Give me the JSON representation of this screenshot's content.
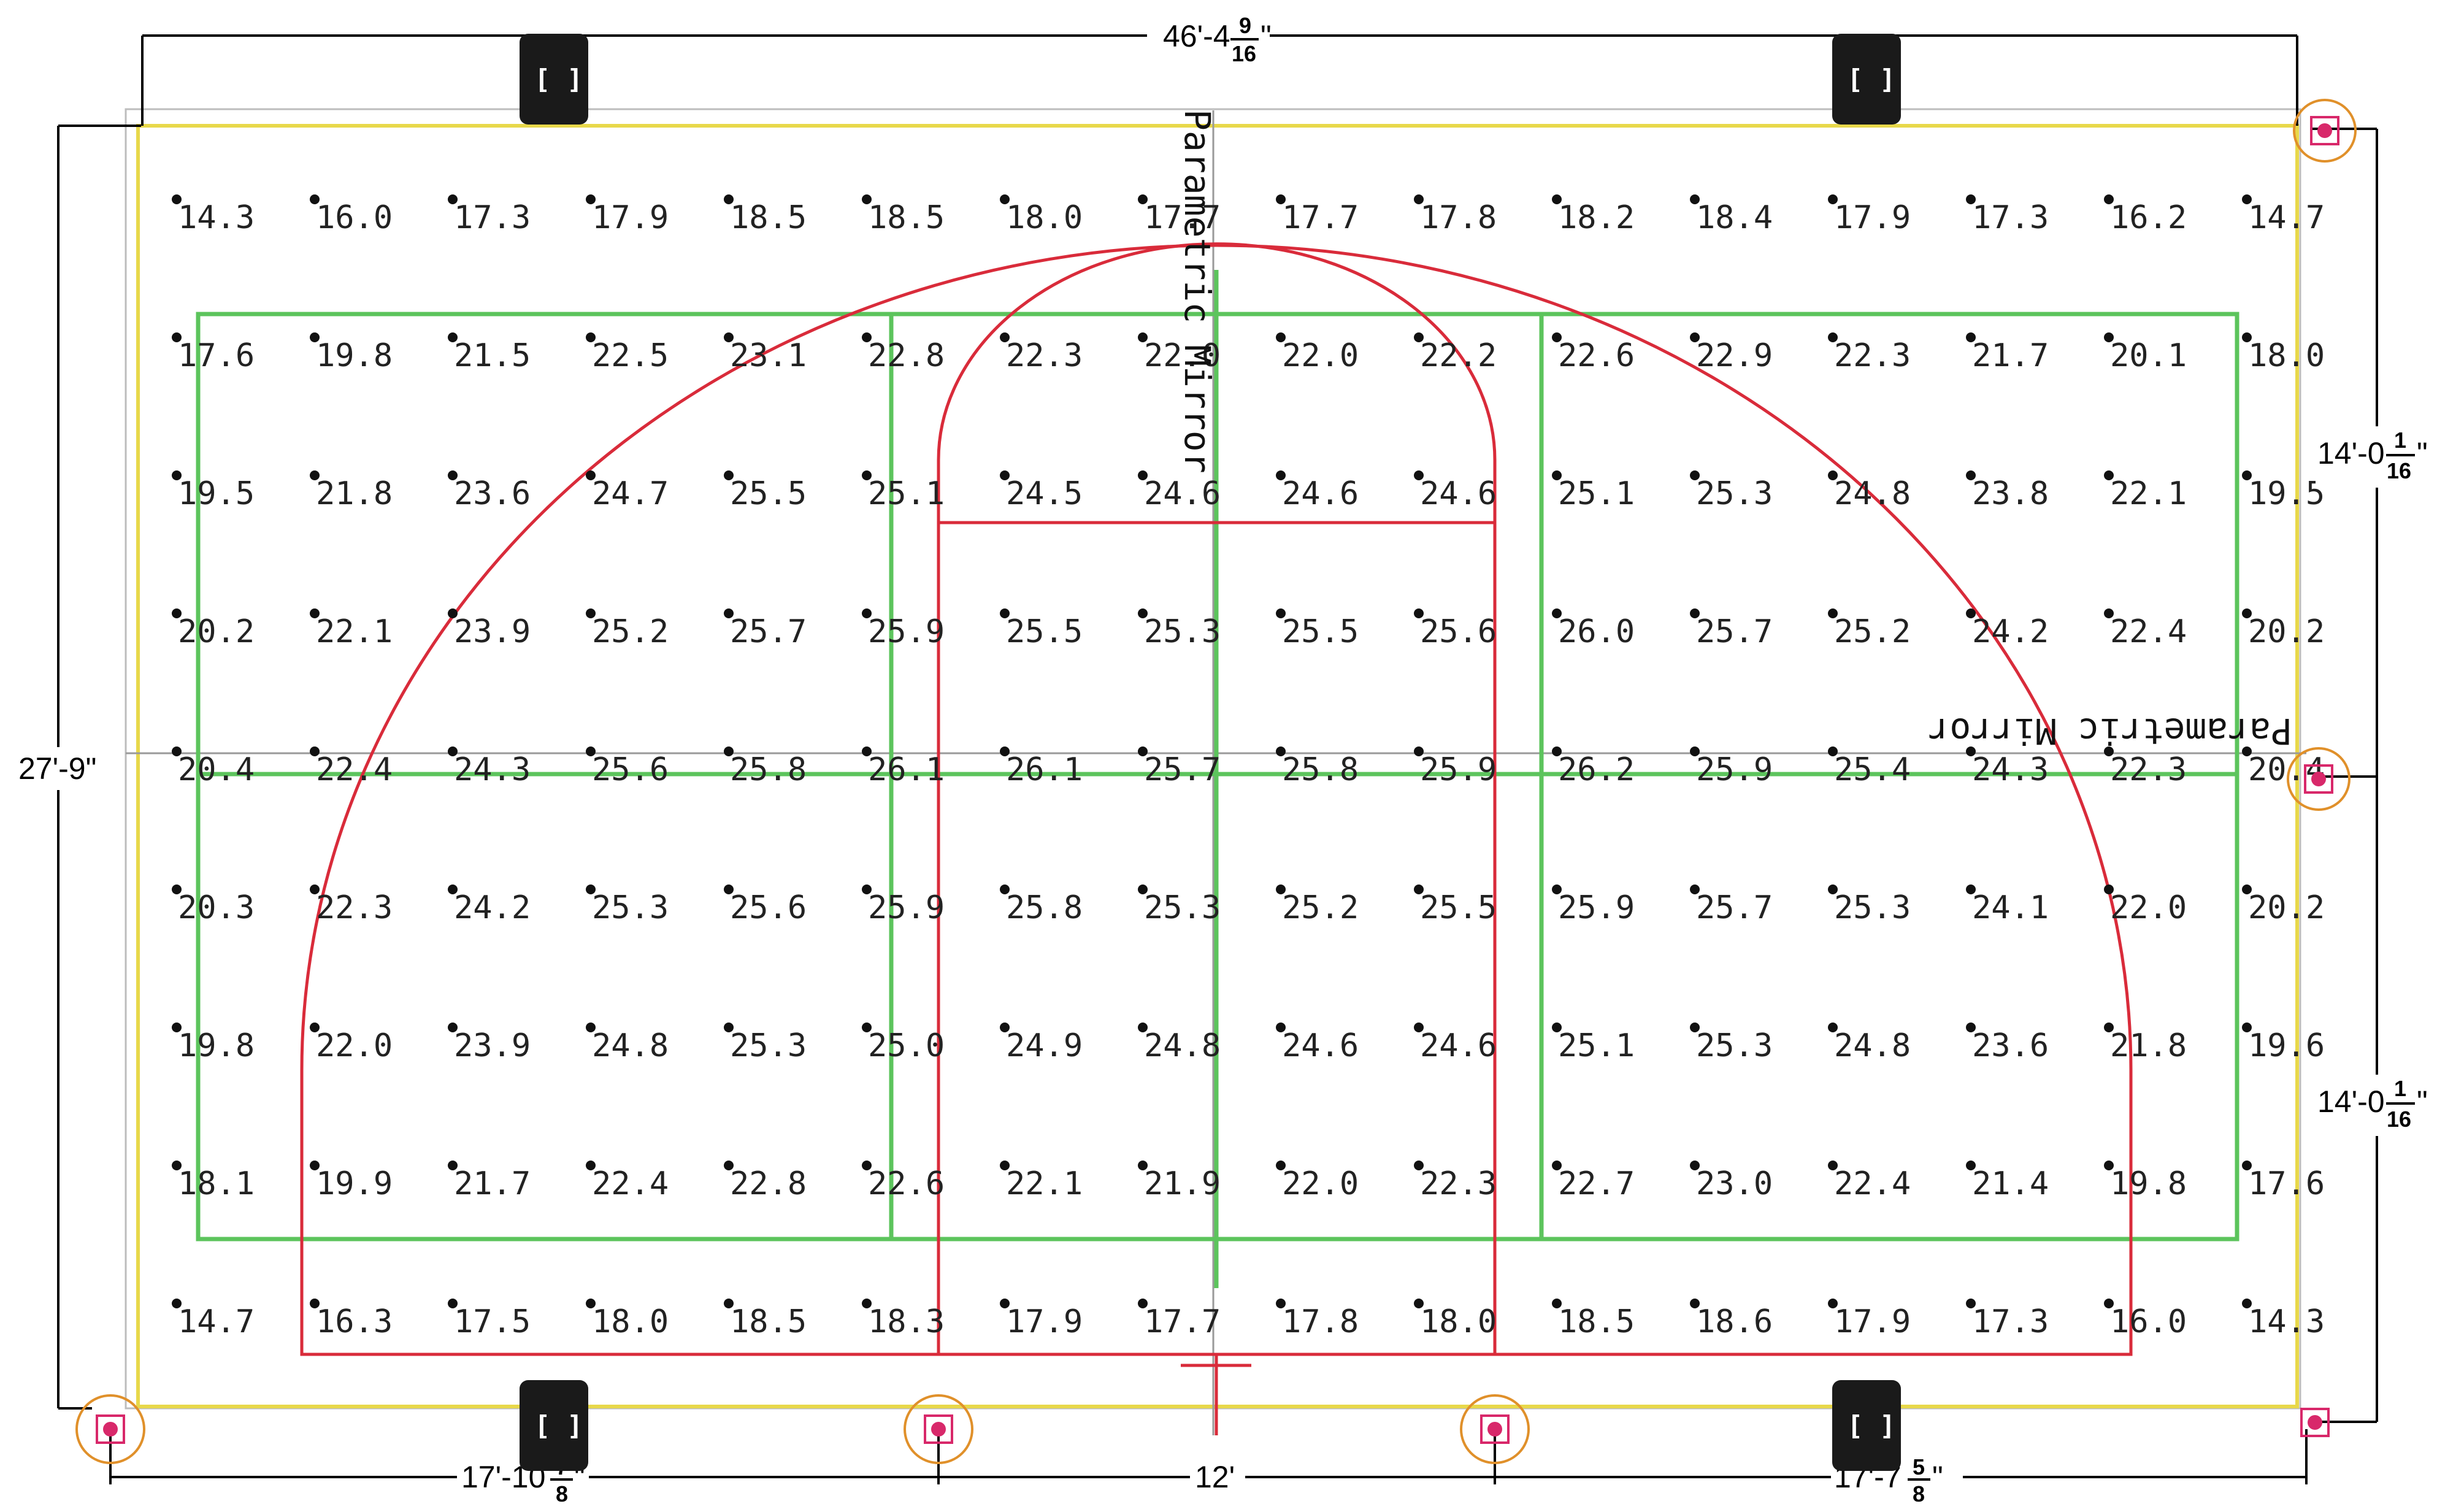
{
  "dimensions": {
    "top_width": {
      "whole": "46'-4",
      "num": "9",
      "den": "16",
      "suffix": "\""
    },
    "left_height": "27'-9\"",
    "right_upper": {
      "whole": "14'-0",
      "num": "1",
      "den": "16",
      "suffix": "\""
    },
    "right_lower": {
      "whole": "14'-0",
      "num": "1",
      "den": "16",
      "suffix": "\""
    },
    "bottom_left": {
      "whole": "17'-10",
      "num": "7",
      "den": "8",
      "suffix": "\""
    },
    "bottom_mid": "12'",
    "bottom_right": {
      "whole": "17'-7",
      "num": "5",
      "den": "8",
      "suffix": "\""
    }
  },
  "labels": {
    "mirror_vertical": "Parametric Mirror",
    "mirror_horizontal": "Parametric Mirror",
    "bracket_marker": "[ ]"
  },
  "grid": {
    "rows": [
      [
        "14.3",
        "16.0",
        "17.3",
        "17.9",
        "18.5",
        "18.5",
        "18.0",
        "17.7",
        "17.7",
        "17.8",
        "18.2",
        "18.4",
        "17.9",
        "17.3",
        "16.2",
        "14.7"
      ],
      [
        "17.6",
        "19.8",
        "21.5",
        "22.5",
        "23.1",
        "22.8",
        "22.3",
        "22.0",
        "22.0",
        "22.2",
        "22.6",
        "22.9",
        "22.3",
        "21.7",
        "20.1",
        "18.0"
      ],
      [
        "19.5",
        "21.8",
        "23.6",
        "24.7",
        "25.5",
        "25.1",
        "24.5",
        "24.6",
        "24.6",
        "24.6",
        "25.1",
        "25.3",
        "24.8",
        "23.8",
        "22.1",
        "19.5"
      ],
      [
        "20.2",
        "22.1",
        "23.9",
        "25.2",
        "25.7",
        "25.9",
        "25.5",
        "25.3",
        "25.5",
        "25.6",
        "26.0",
        "25.7",
        "25.2",
        "24.2",
        "22.4",
        "20.2"
      ],
      [
        "20.4",
        "22.4",
        "24.3",
        "25.6",
        "25.8",
        "26.1",
        "26.1",
        "25.7",
        "25.8",
        "25.9",
        "26.2",
        "25.9",
        "25.4",
        "24.3",
        "22.3",
        "20.4"
      ],
      [
        "20.3",
        "22.3",
        "24.2",
        "25.3",
        "25.6",
        "25.9",
        "25.8",
        "25.3",
        "25.2",
        "25.5",
        "25.9",
        "25.7",
        "25.3",
        "24.1",
        "22.0",
        "20.2"
      ],
      [
        "19.8",
        "22.0",
        "23.9",
        "24.8",
        "25.3",
        "25.0",
        "24.9",
        "24.8",
        "24.6",
        "24.6",
        "25.1",
        "25.3",
        "24.8",
        "23.6",
        "21.8",
        "19.6"
      ],
      [
        "18.1",
        "19.9",
        "21.7",
        "22.4",
        "22.8",
        "22.6",
        "22.1",
        "21.9",
        "22.0",
        "22.3",
        "22.7",
        "23.0",
        "22.4",
        "21.4",
        "19.8",
        "17.6"
      ],
      [
        "14.7",
        "16.3",
        "17.5",
        "18.0",
        "18.5",
        "18.3",
        "17.9",
        "17.7",
        "17.8",
        "18.0",
        "18.5",
        "18.6",
        "17.9",
        "17.3",
        "16.0",
        "14.3"
      ]
    ]
  },
  "colors": {
    "boundary": "#e8d84a",
    "zones": "#5cc45c",
    "court": "#d92b3a",
    "fixture_ring": "#e0902a",
    "fixture_mark": "#d8286a"
  }
}
